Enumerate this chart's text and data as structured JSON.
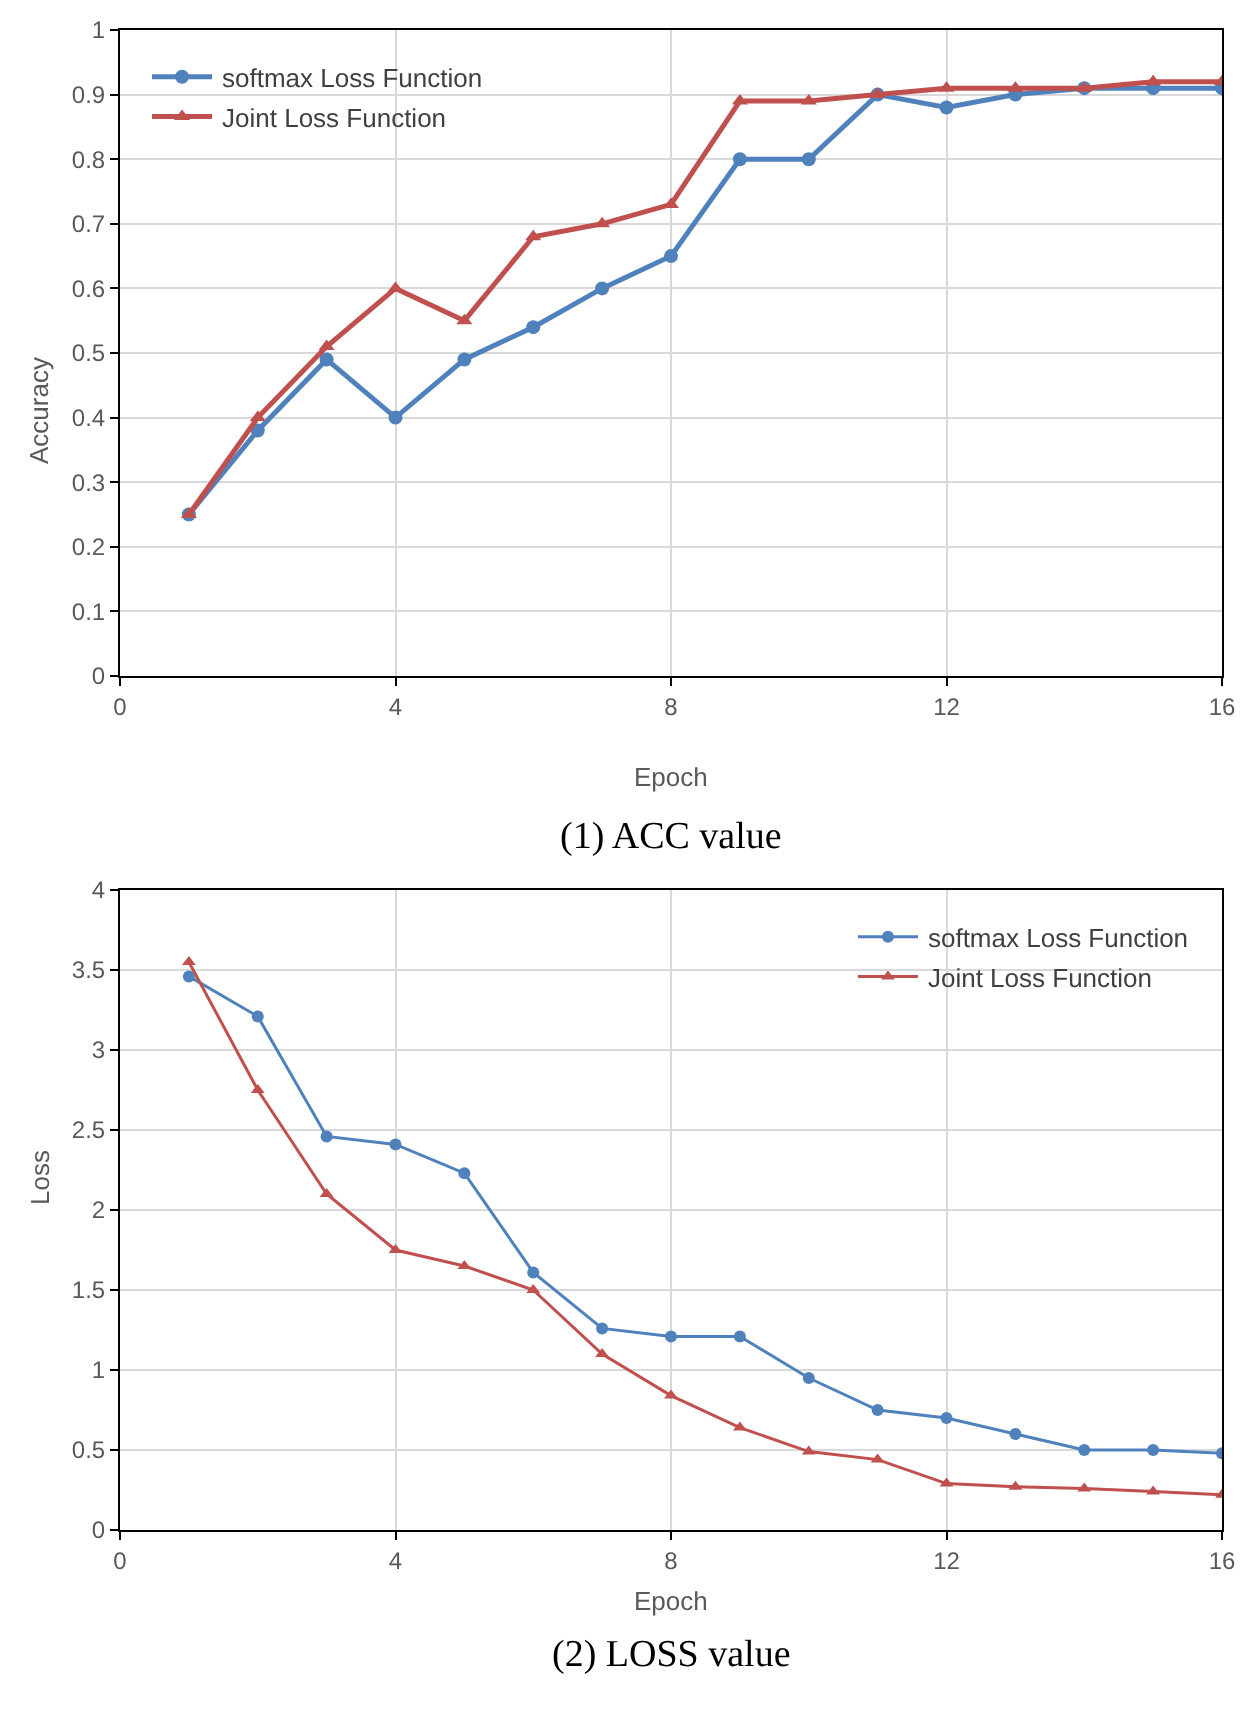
{
  "chart_data": [
    {
      "type": "line",
      "xlabel": "Epoch",
      "ylabel": "Accuracy",
      "annotations": [
        "(1) ACC value"
      ],
      "x": [
        1,
        2,
        3,
        4,
        5,
        6,
        7,
        8,
        9,
        10,
        11,
        12,
        13,
        14,
        15,
        16
      ],
      "xlim": [
        0,
        16
      ],
      "xticks": [
        0,
        4,
        8,
        12,
        16
      ],
      "ylim": [
        0,
        1
      ],
      "yticks": [
        0,
        0.1,
        0.2,
        0.3,
        0.4,
        0.5,
        0.6,
        0.7,
        0.8,
        0.9,
        1
      ],
      "grid": true,
      "legend": "top left",
      "series": [
        {
          "name": "softmax Loss Function",
          "color": "#4f81bd",
          "marker": "circle",
          "values": [
            0.25,
            0.38,
            0.49,
            0.4,
            0.49,
            0.54,
            0.6,
            0.65,
            0.8,
            0.8,
            0.9,
            0.88,
            0.9,
            0.91,
            0.91,
            0.91
          ]
        },
        {
          "name": "Joint Loss Function",
          "color": "#c0504d",
          "marker": "triangle",
          "values": [
            0.25,
            0.4,
            0.51,
            0.6,
            0.55,
            0.68,
            0.7,
            0.73,
            0.89,
            0.89,
            0.9,
            0.91,
            0.91,
            0.91,
            0.92,
            0.92
          ]
        }
      ]
    },
    {
      "type": "line",
      "xlabel": "Epoch",
      "ylabel": "Loss",
      "annotations": [
        "(2) LOSS value"
      ],
      "x": [
        1,
        2,
        3,
        4,
        5,
        6,
        7,
        8,
        9,
        10,
        11,
        12,
        13,
        14,
        15,
        16
      ],
      "xlim": [
        0,
        16
      ],
      "xticks": [
        0,
        4,
        8,
        12,
        16
      ],
      "ylim": [
        0,
        4
      ],
      "yticks": [
        0,
        0.5,
        1,
        1.5,
        2,
        2.5,
        3,
        3.5,
        4
      ],
      "grid": true,
      "legend": "top right",
      "series": [
        {
          "name": "softmax Loss Function",
          "color": "#4f81bd",
          "marker": "circle",
          "values": [
            3.46,
            3.21,
            2.46,
            2.41,
            2.23,
            1.61,
            1.26,
            1.21,
            1.21,
            0.95,
            0.75,
            0.7,
            0.6,
            0.5,
            0.5,
            0.48
          ]
        },
        {
          "name": "Joint Loss Function",
          "color": "#c0504d",
          "marker": "triangle",
          "values": [
            3.55,
            2.75,
            2.1,
            1.75,
            1.65,
            1.5,
            1.1,
            0.84,
            0.64,
            0.49,
            0.44,
            0.29,
            0.27,
            0.26,
            0.24,
            0.22
          ]
        }
      ]
    }
  ]
}
